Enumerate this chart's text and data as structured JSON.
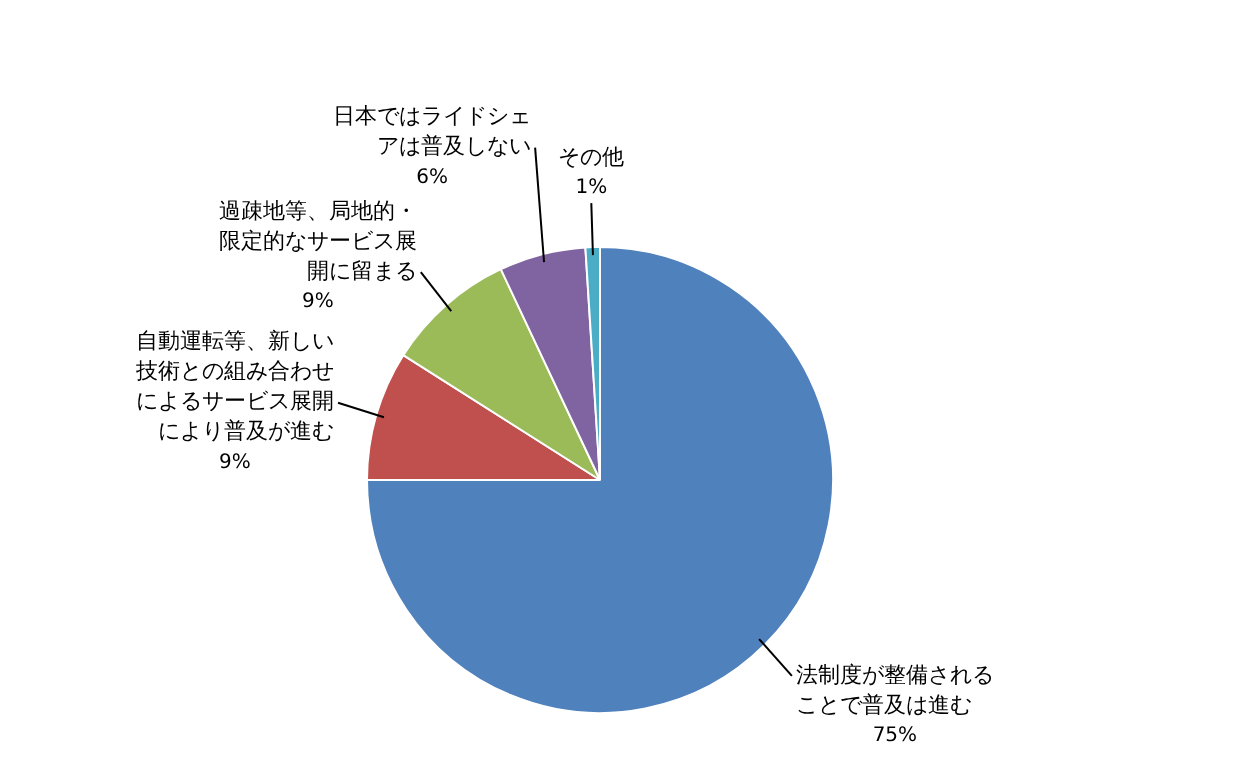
{
  "chart_data": {
    "type": "pie",
    "categories": [
      "法制度が整備されることで普及は進む",
      "自動運転等、新しい技術との組み合わせによるサービス展開により普及が進む",
      "過疎地等、局地的・限定的なサービス展開に留まる",
      "日本ではライドシェアは普及しない",
      "その他"
    ],
    "values": [
      75,
      9,
      9,
      6,
      1
    ],
    "colors": [
      "#4f81bd",
      "#c0504d",
      "#9bbb59",
      "#8064a2",
      "#4bacc6"
    ],
    "value_labels": [
      "75%",
      "9%",
      "9%",
      "6%",
      "1%"
    ],
    "legend": false
  }
}
